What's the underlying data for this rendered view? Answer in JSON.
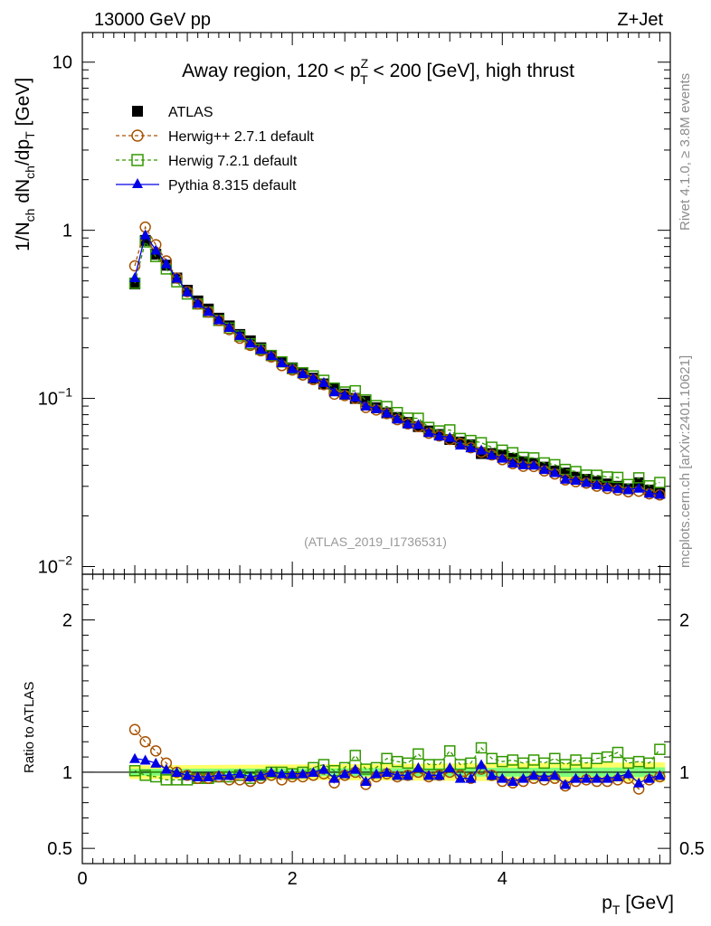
{
  "header": {
    "energy_label": "13000 GeV pp",
    "process_label": "Z+Jet"
  },
  "side_labels": {
    "rivet": "Rivet 4.1.0, ≥ 3.8M events",
    "mcplots": "mcplots.cern.ch [arXiv:2401.10621]"
  },
  "chart_data": {
    "type": "line",
    "title": "Away region, 120 < p_T^Z < 200 [GeV], high thrust",
    "analysis_label": "(ATLAS_2019_I1736531)",
    "xlabel": "p_T [GeV]",
    "ylabel": "1/N_ch dN_ch/dp_T [GeV]",
    "ratio_ylabel": "Ratio to ATLAS",
    "xlim": [
      0,
      5.6
    ],
    "ylim": [
      0.009,
      15
    ],
    "ratio_ylim": [
      0.4,
      2.3
    ],
    "yscale": "log",
    "x_ticks": [
      "0",
      "2",
      "4"
    ],
    "y_ticks": [
      "10",
      "1",
      "10^-1",
      "10^-2"
    ],
    "ratio_ticks": [
      "2",
      "1",
      "0.5"
    ],
    "legend": {
      "atlas": "ATLAS",
      "herwigpp": "Herwig++ 2.7.1 default",
      "herwig7": "Herwig 7.2.1 default",
      "pythia": "Pythia 8.315 default"
    },
    "x": [
      0.5,
      0.6,
      0.7,
      0.8,
      0.9,
      1.0,
      1.1,
      1.2,
      1.3,
      1.4,
      1.5,
      1.6,
      1.7,
      1.8,
      1.9,
      2.0,
      2.1,
      2.2,
      2.3,
      2.4,
      2.5,
      2.6,
      2.7,
      2.8,
      2.9,
      3.0,
      3.1,
      3.2,
      3.3,
      3.4,
      3.5,
      3.6,
      3.7,
      3.8,
      3.9,
      4.0,
      4.1,
      4.2,
      4.3,
      4.4,
      4.5,
      4.6,
      4.7,
      4.8,
      4.9,
      5.0,
      5.1,
      5.2,
      5.3,
      5.4,
      5.5
    ],
    "atlas": [
      0.48,
      0.87,
      0.72,
      0.62,
      0.52,
      0.44,
      0.38,
      0.34,
      0.3,
      0.27,
      0.24,
      0.22,
      0.2,
      0.18,
      0.165,
      0.152,
      0.142,
      0.132,
      0.122,
      0.114,
      0.106,
      0.1,
      0.096,
      0.088,
      0.082,
      0.077,
      0.072,
      0.068,
      0.064,
      0.061,
      0.057,
      0.055,
      0.053,
      0.047,
      0.047,
      0.046,
      0.044,
      0.042,
      0.041,
      0.039,
      0.037,
      0.036,
      0.034,
      0.033,
      0.032,
      0.031,
      0.03,
      0.029,
      0.0315,
      0.0285,
      0.0275
    ],
    "ratios": {
      "herwigpp": [
        1.28,
        1.2,
        1.14,
        1.06,
        1.0,
        0.98,
        0.96,
        0.96,
        0.97,
        0.95,
        0.95,
        0.94,
        0.96,
        0.98,
        0.95,
        0.97,
        0.97,
        0.98,
        0.99,
        0.93,
        0.98,
        1.0,
        0.92,
        0.97,
        0.99,
        0.97,
        0.98,
        1.0,
        0.97,
        0.98,
        1.0,
        0.98,
        0.96,
        1.02,
        0.98,
        0.94,
        0.93,
        0.94,
        0.96,
        0.95,
        0.96,
        0.91,
        0.94,
        0.95,
        0.94,
        0.94,
        0.95,
        0.96,
        0.89,
        0.95,
        0.97
      ],
      "herwig7": [
        1.01,
        0.98,
        0.97,
        0.95,
        0.95,
        0.95,
        0.96,
        0.96,
        0.97,
        0.97,
        0.98,
        0.96,
        0.98,
        1.0,
        1.0,
        0.99,
        1.0,
        1.03,
        1.05,
        1.01,
        1.03,
        1.11,
        1.02,
        1.03,
        1.09,
        1.07,
        1.06,
        1.12,
        1.05,
        1.05,
        1.14,
        1.05,
        1.06,
        1.16,
        1.09,
        1.07,
        1.08,
        1.06,
        1.08,
        1.06,
        1.09,
        1.05,
        1.08,
        1.06,
        1.09,
        1.1,
        1.13,
        1.06,
        1.07,
        1.06,
        1.15
      ],
      "pythia": [
        1.09,
        1.08,
        1.06,
        1.02,
        1.0,
        0.98,
        0.97,
        0.97,
        0.98,
        0.98,
        0.99,
        0.97,
        0.98,
        1.0,
        0.99,
        0.99,
        0.99,
        1.0,
        1.02,
        0.96,
        0.99,
        1.02,
        0.94,
        0.99,
        1.0,
        0.98,
        0.98,
        1.03,
        0.98,
        0.98,
        1.03,
        0.96,
        0.96,
        1.05,
        0.98,
        0.96,
        0.94,
        0.96,
        0.98,
        0.97,
        0.98,
        0.92,
        0.96,
        0.96,
        0.96,
        0.96,
        0.97,
        0.99,
        0.93,
        0.96,
        0.98
      ]
    },
    "colors": {
      "atlas": "#000000",
      "herwigpp": "#a65200",
      "herwig7": "#339900",
      "pythia": "#0000e6",
      "band_inner": "#7dff7d",
      "band_outer": "#ffff66"
    }
  }
}
